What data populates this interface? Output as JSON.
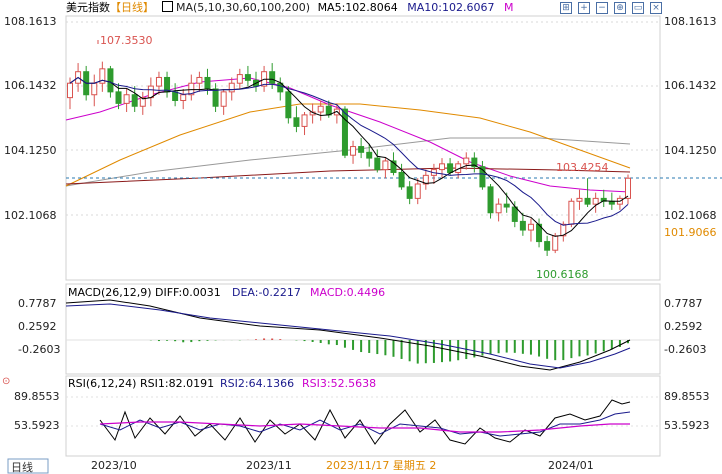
{
  "header": {
    "symbol": "美元指数",
    "period": "【日线】",
    "ma_label": "MA(5,10,30,60,100,200)",
    "ma5_label": "MA5:102.8064",
    "ma10_label": "MA10:102.6067",
    "m_link": "M"
  },
  "toolbar": {
    "icons": [
      "grid-icon",
      "crosshair-icon",
      "zoom-out-icon",
      "zoom-in-icon",
      "expand-icon",
      "close-icon"
    ]
  },
  "price_axis": {
    "ticks": [
      "108.1613",
      "106.1432",
      "104.1250",
      "102.1068"
    ],
    "extra_label": "101.9066",
    "extra_label_color": "#e08a00"
  },
  "annotations": {
    "high": "107.3530",
    "low": "100.6168",
    "last": "103.4254",
    "high_color": "#d9534f",
    "low_color": "#2e9b2e"
  },
  "macd": {
    "label": "MACD(26,12,9)",
    "diff": "DIFF:0.0031",
    "dea": "DEA:-0.2217",
    "macd": "MACD:0.4496",
    "ticks": [
      "0.7787",
      "0.2592",
      "-0.2603"
    ]
  },
  "rsi": {
    "label": "RSI(6,12,24)",
    "rsi1": "RSI1:82.0191",
    "rsi2": "RSI2:64.1366",
    "rsi3": "RSI3:52.5638",
    "ticks": [
      "89.8553",
      "53.5923"
    ]
  },
  "footer": {
    "period_badge": "日线",
    "dates": [
      "2023/10",
      "2023/11",
      "2023/11/17 星期五 2",
      "2024/01"
    ]
  },
  "chart_data": {
    "type": "candlestick",
    "title": "美元指数【日线】",
    "ylim": [
      99.8,
      108.9
    ],
    "candles": [
      [
        106.1,
        106.8,
        105.7,
        106.6
      ],
      [
        106.6,
        107.3,
        106.3,
        107.0
      ],
      [
        107.0,
        107.2,
        106.0,
        106.2
      ],
      [
        106.2,
        106.9,
        105.8,
        106.6
      ],
      [
        106.6,
        107.35,
        106.3,
        107.1
      ],
      [
        107.1,
        107.2,
        106.1,
        106.3
      ],
      [
        106.3,
        106.6,
        105.7,
        105.9
      ],
      [
        105.9,
        106.4,
        105.6,
        106.2
      ],
      [
        106.2,
        106.5,
        105.6,
        105.8
      ],
      [
        105.8,
        106.3,
        105.5,
        106.1
      ],
      [
        106.1,
        106.8,
        105.8,
        106.5
      ],
      [
        106.5,
        107.0,
        106.2,
        106.8
      ],
      [
        106.8,
        107.0,
        106.1,
        106.3
      ],
      [
        106.3,
        106.6,
        105.8,
        106.0
      ],
      [
        106.0,
        106.4,
        105.7,
        106.2
      ],
      [
        106.2,
        106.9,
        106.0,
        106.6
      ],
      [
        106.6,
        107.0,
        106.3,
        106.8
      ],
      [
        106.8,
        107.1,
        106.2,
        106.4
      ],
      [
        106.4,
        106.6,
        105.6,
        105.8
      ],
      [
        105.8,
        106.4,
        105.5,
        106.3
      ],
      [
        106.3,
        106.8,
        106.0,
        106.6
      ],
      [
        106.6,
        107.1,
        106.4,
        106.9
      ],
      [
        106.9,
        107.2,
        106.5,
        106.7
      ],
      [
        106.7,
        107.0,
        106.3,
        106.5
      ],
      [
        106.5,
        107.2,
        106.3,
        107.0
      ],
      [
        107.0,
        107.3,
        106.4,
        106.6
      ],
      [
        106.6,
        106.8,
        106.0,
        106.3
      ],
      [
        106.3,
        106.5,
        105.2,
        105.4
      ],
      [
        105.4,
        105.8,
        104.9,
        105.1
      ],
      [
        105.1,
        105.6,
        104.8,
        105.5
      ],
      [
        105.5,
        105.9,
        105.2,
        105.6
      ],
      [
        105.6,
        106.0,
        105.3,
        105.8
      ],
      [
        105.8,
        106.0,
        105.4,
        105.5
      ],
      [
        105.5,
        105.9,
        105.2,
        105.7
      ],
      [
        105.7,
        105.8,
        104.0,
        104.1
      ],
      [
        104.1,
        104.6,
        103.8,
        104.4
      ],
      [
        104.4,
        104.7,
        104.0,
        104.2
      ],
      [
        104.2,
        104.5,
        103.7,
        104.0
      ],
      [
        104.0,
        104.3,
        103.5,
        103.6
      ],
      [
        103.6,
        104.0,
        103.3,
        103.9
      ],
      [
        103.9,
        104.2,
        103.4,
        103.5
      ],
      [
        103.5,
        103.8,
        102.9,
        103.0
      ],
      [
        103.0,
        103.2,
        102.4,
        102.6
      ],
      [
        102.6,
        103.3,
        102.4,
        103.1
      ],
      [
        103.1,
        103.6,
        102.9,
        103.4
      ],
      [
        103.4,
        103.8,
        103.1,
        103.6
      ],
      [
        103.6,
        104.0,
        103.3,
        103.8
      ],
      [
        103.8,
        104.0,
        103.4,
        103.5
      ],
      [
        103.5,
        103.9,
        103.3,
        103.8
      ],
      [
        103.8,
        104.2,
        103.6,
        104.0
      ],
      [
        104.0,
        104.2,
        103.5,
        103.7
      ],
      [
        103.7,
        103.9,
        102.9,
        103.0
      ],
      [
        103.0,
        103.1,
        101.9,
        102.1
      ],
      [
        102.1,
        102.6,
        101.8,
        102.4
      ],
      [
        102.4,
        102.8,
        102.1,
        102.3
      ],
      [
        102.3,
        102.5,
        101.6,
        101.8
      ],
      [
        101.8,
        102.1,
        101.3,
        101.5
      ],
      [
        101.5,
        101.9,
        101.1,
        101.7
      ],
      [
        101.7,
        101.9,
        100.9,
        101.1
      ],
      [
        101.1,
        101.3,
        100.6,
        100.8
      ],
      [
        100.8,
        101.4,
        100.7,
        101.3
      ],
      [
        101.3,
        101.8,
        101.1,
        101.7
      ],
      [
        101.7,
        102.6,
        101.6,
        102.5
      ],
      [
        102.5,
        102.9,
        102.2,
        102.6
      ],
      [
        102.6,
        103.3,
        102.3,
        102.4
      ],
      [
        102.4,
        102.8,
        102.1,
        102.6
      ],
      [
        102.6,
        102.9,
        102.3,
        102.5
      ],
      [
        102.5,
        102.8,
        102.2,
        102.4
      ],
      [
        102.4,
        102.7,
        102.2,
        102.6
      ],
      [
        102.6,
        103.43,
        102.4,
        103.3
      ]
    ]
  }
}
